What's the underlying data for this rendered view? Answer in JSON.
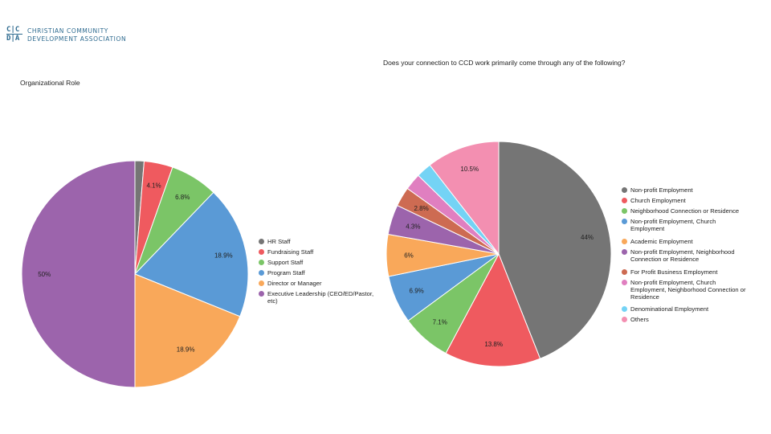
{
  "logo": {
    "mark_top": "C|C",
    "mark_bottom": "D|A",
    "line1": "CHRISTIAN COMMUNITY",
    "line2": "DEVELOPMENT ASSOCIATION"
  },
  "chart_data": [
    {
      "type": "pie",
      "title": "Organizational Role",
      "categories": [
        "HR Staff",
        "Fundraising Staff",
        "Support Staff",
        "Program Staff",
        "Director or Manager",
        "Executive Leadership (CEO/ED/Pastor, etc)"
      ],
      "values": [
        1.3,
        4.1,
        6.8,
        18.9,
        18.9,
        50
      ],
      "labels": [
        "",
        "4.1%",
        "6.8%",
        "18.9%",
        "18.9%",
        "50%"
      ],
      "colors": [
        "#757575",
        "#ef5a5f",
        "#7bc567",
        "#5a9ad6",
        "#f9a85a",
        "#9c64ac"
      ],
      "legend_position": "right"
    },
    {
      "type": "pie",
      "title": "Does your connection to CCD work primarily come through any of the following?",
      "categories": [
        "Non-profit Employment",
        "Church Employment",
        "Neighborhood Connection or Residence",
        "Non-profit Employment, Church Employment",
        "Academic Employment",
        "Non-profit Employment, Neighborhood Connection or Residence",
        "For Profit Business Employment",
        "Non-profit Employment, Church Employment, Neighborhood Connection or Residence",
        "Denominational Employment",
        "Others"
      ],
      "values": [
        44,
        13.8,
        7.1,
        6.9,
        6,
        4.3,
        2.8,
        2.4,
        2.2,
        10.5
      ],
      "labels": [
        "44%",
        "13.8%",
        "7.1%",
        "6.9%",
        "6%",
        "4.3%",
        "2.8%",
        "",
        "",
        "10.5%"
      ],
      "colors": [
        "#757575",
        "#ef5a5f",
        "#7bc567",
        "#5a9ad6",
        "#f9a85a",
        "#9c64ac",
        "#cd6b52",
        "#e07fc0",
        "#74d3f5",
        "#f38fb1"
      ],
      "legend_position": "right"
    }
  ]
}
